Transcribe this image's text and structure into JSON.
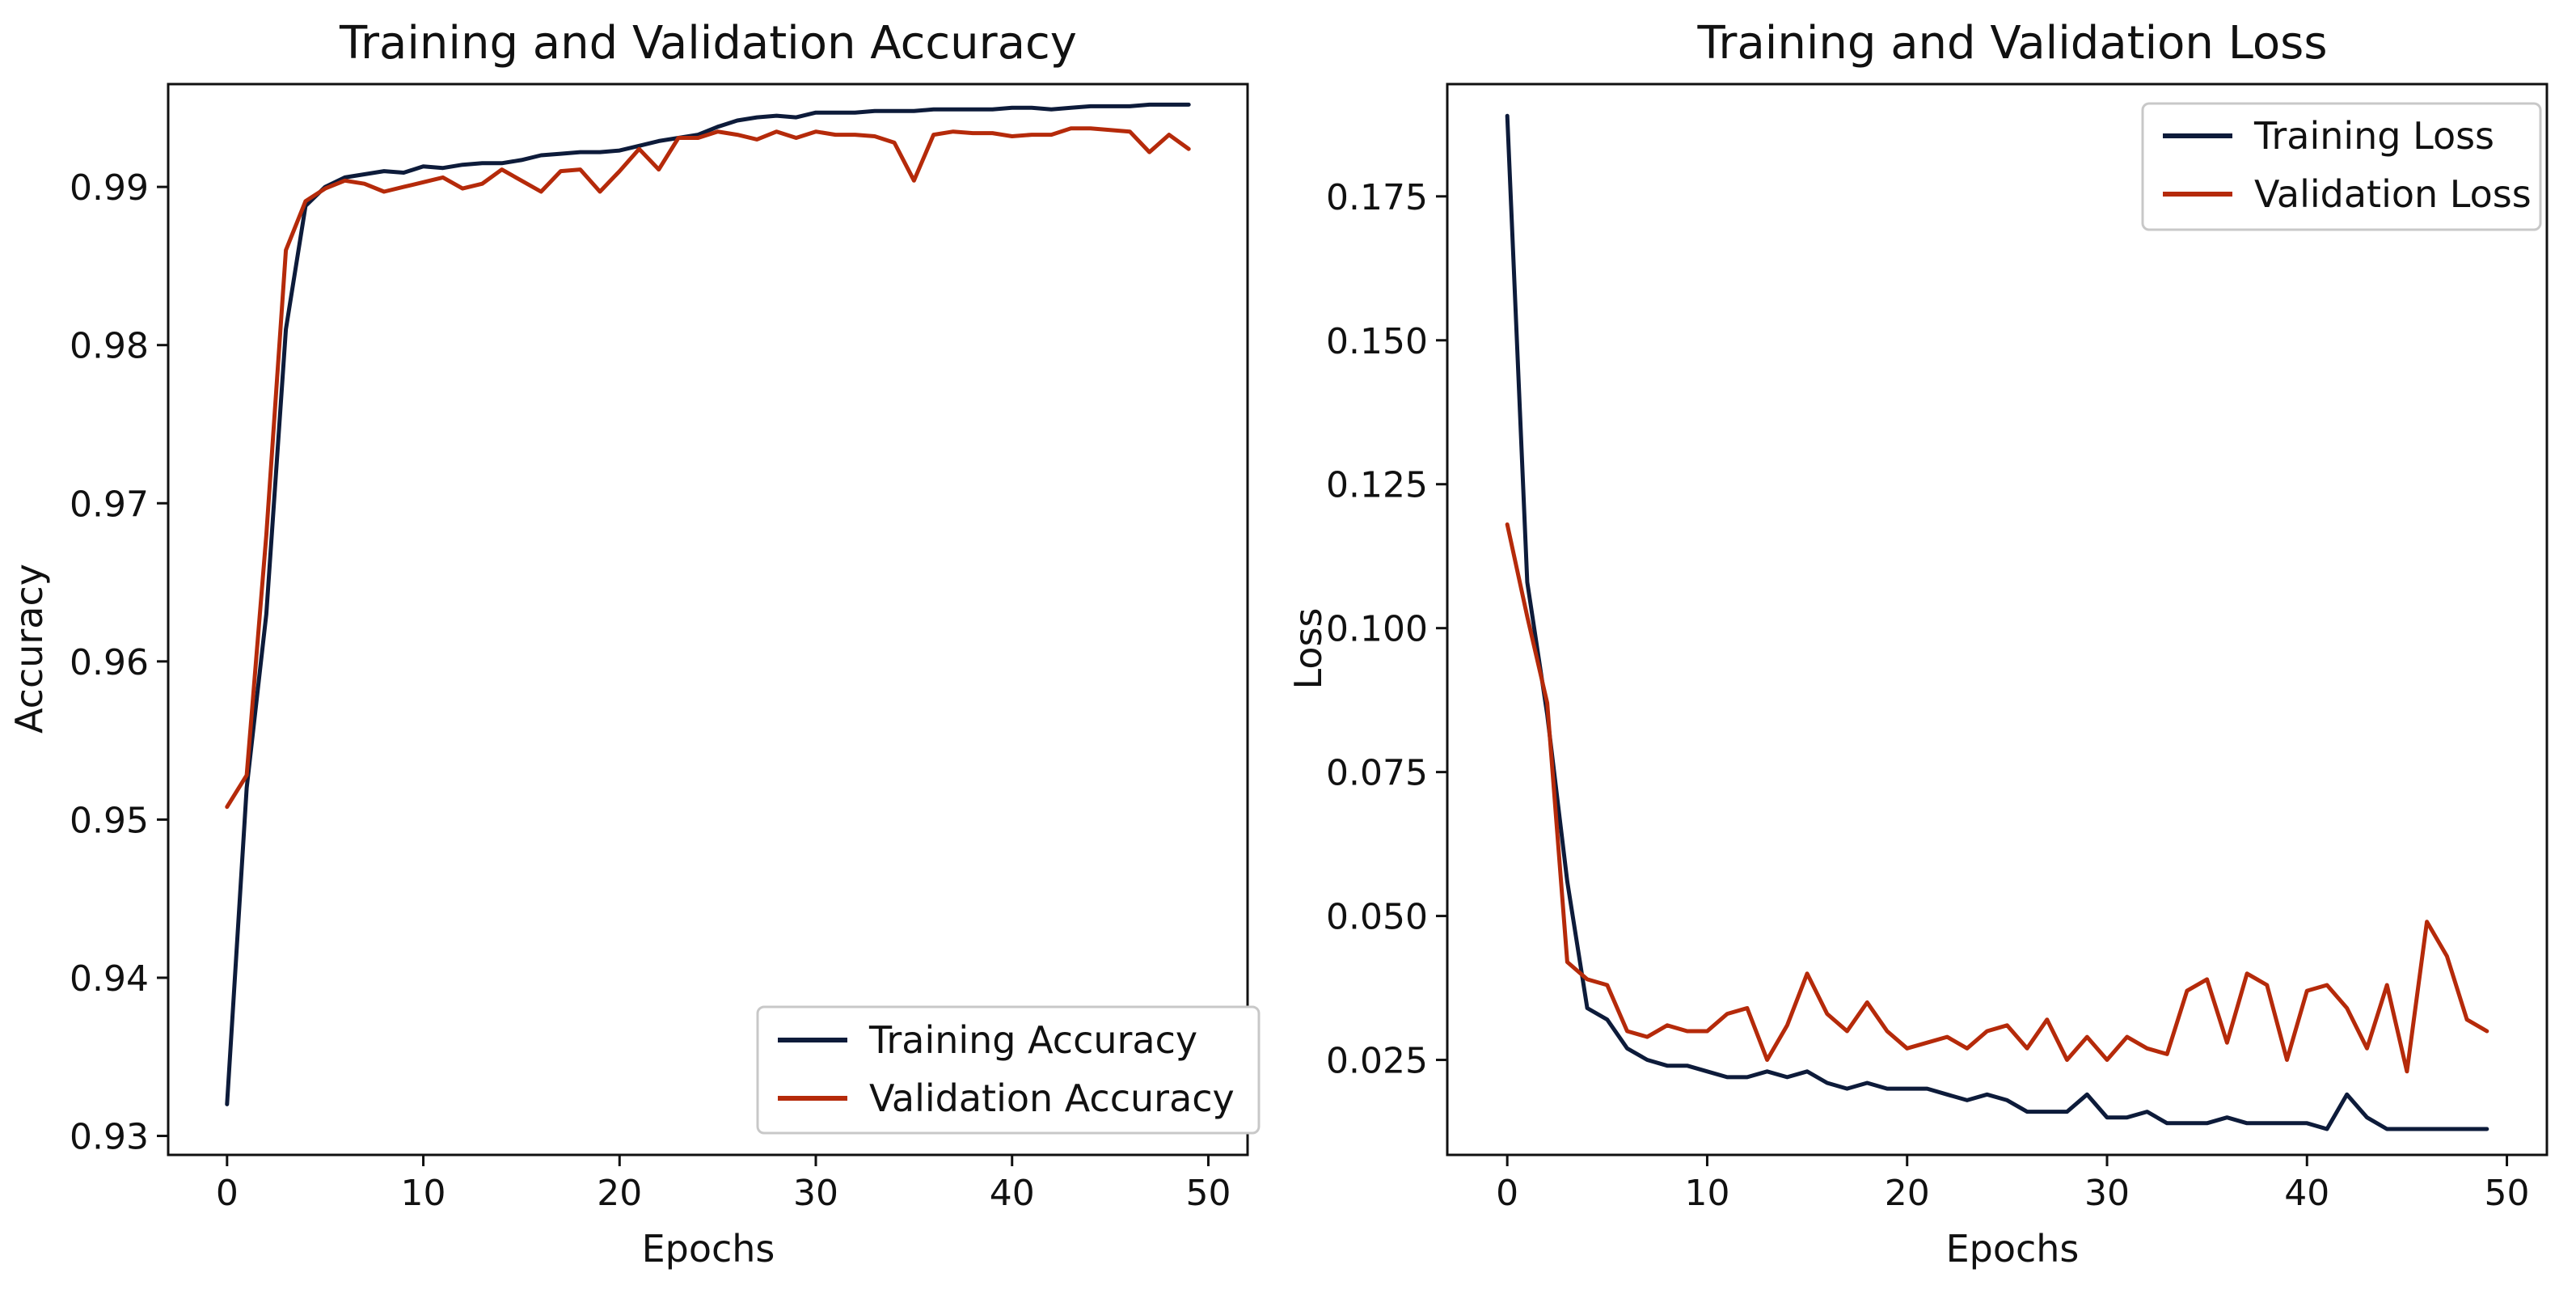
{
  "colors": {
    "training": "#0d1b3a",
    "validation": "#b52a0a"
  },
  "chart_data": [
    {
      "type": "line",
      "title": "Training and Validation Accuracy",
      "xlabel": "Epochs",
      "ylabel": "Accuracy",
      "xlim": [
        -3,
        52
      ],
      "ylim": [
        0.9288,
        0.9965
      ],
      "xticks": [
        0,
        10,
        20,
        30,
        40,
        50
      ],
      "yticks": [
        0.93,
        0.94,
        0.95,
        0.96,
        0.97,
        0.98,
        0.99
      ],
      "ytick_labels": [
        "0.93",
        "0.94",
        "0.95",
        "0.96",
        "0.97",
        "0.98",
        "0.99"
      ],
      "legend_position": "lower-right",
      "x": [
        0,
        1,
        2,
        3,
        4,
        5,
        6,
        7,
        8,
        9,
        10,
        11,
        12,
        13,
        14,
        15,
        16,
        17,
        18,
        19,
        20,
        21,
        22,
        23,
        24,
        25,
        26,
        27,
        28,
        29,
        30,
        31,
        32,
        33,
        34,
        35,
        36,
        37,
        38,
        39,
        40,
        41,
        42,
        43,
        44,
        45,
        46,
        47,
        48,
        49
      ],
      "series": [
        {
          "name": "Training Accuracy",
          "color_key": "training",
          "values": [
            0.932,
            0.952,
            0.963,
            0.981,
            0.9888,
            0.99,
            0.9906,
            0.9908,
            0.991,
            0.9909,
            0.9913,
            0.9912,
            0.9914,
            0.9915,
            0.9915,
            0.9917,
            0.992,
            0.9921,
            0.9922,
            0.9922,
            0.9923,
            0.9926,
            0.9929,
            0.9931,
            0.9933,
            0.9938,
            0.9942,
            0.9944,
            0.9945,
            0.9944,
            0.9947,
            0.9947,
            0.9947,
            0.9948,
            0.9948,
            0.9948,
            0.9949,
            0.9949,
            0.9949,
            0.9949,
            0.995,
            0.995,
            0.9949,
            0.995,
            0.9951,
            0.9951,
            0.9951,
            0.9952,
            0.9952,
            0.9952
          ]
        },
        {
          "name": "Validation Accuracy",
          "color_key": "validation",
          "values": [
            0.9508,
            0.9528,
            0.968,
            0.986,
            0.9891,
            0.9899,
            0.9904,
            0.9902,
            0.9897,
            0.99,
            0.9903,
            0.9906,
            0.9899,
            0.9902,
            0.9911,
            0.9904,
            0.9897,
            0.991,
            0.9911,
            0.9897,
            0.991,
            0.9924,
            0.9911,
            0.9931,
            0.9931,
            0.9935,
            0.9933,
            0.993,
            0.9935,
            0.9931,
            0.9935,
            0.9933,
            0.9933,
            0.9932,
            0.9928,
            0.9904,
            0.9933,
            0.9935,
            0.9934,
            0.9934,
            0.9932,
            0.9933,
            0.9933,
            0.9937,
            0.9937,
            0.9936,
            0.9935,
            0.9922,
            0.9933,
            0.9924
          ]
        }
      ]
    },
    {
      "type": "line",
      "title": "Training and Validation Loss",
      "xlabel": "Epochs",
      "ylabel": "Loss",
      "xlim": [
        -3,
        52
      ],
      "ylim": [
        0.0085,
        0.1945
      ],
      "xticks": [
        0,
        10,
        20,
        30,
        40,
        50
      ],
      "yticks": [
        0.025,
        0.05,
        0.075,
        0.1,
        0.125,
        0.15,
        0.175
      ],
      "ytick_labels": [
        "0.025",
        "0.050",
        "0.075",
        "0.100",
        "0.125",
        "0.150",
        "0.175"
      ],
      "legend_position": "upper-right",
      "x": [
        0,
        1,
        2,
        3,
        4,
        5,
        6,
        7,
        8,
        9,
        10,
        11,
        12,
        13,
        14,
        15,
        16,
        17,
        18,
        19,
        20,
        21,
        22,
        23,
        24,
        25,
        26,
        27,
        28,
        29,
        30,
        31,
        32,
        33,
        34,
        35,
        36,
        37,
        38,
        39,
        40,
        41,
        42,
        43,
        44,
        45,
        46,
        47,
        48,
        49
      ],
      "series": [
        {
          "name": "Training Loss",
          "color_key": "training",
          "values": [
            0.189,
            0.108,
            0.085,
            0.056,
            0.034,
            0.032,
            0.027,
            0.025,
            0.024,
            0.024,
            0.023,
            0.022,
            0.022,
            0.023,
            0.022,
            0.023,
            0.021,
            0.02,
            0.021,
            0.02,
            0.02,
            0.02,
            0.019,
            0.018,
            0.019,
            0.018,
            0.016,
            0.016,
            0.016,
            0.019,
            0.015,
            0.015,
            0.016,
            0.014,
            0.014,
            0.014,
            0.015,
            0.014,
            0.014,
            0.014,
            0.014,
            0.013,
            0.019,
            0.015,
            0.013,
            0.013,
            0.013,
            0.013,
            0.013,
            0.013
          ]
        },
        {
          "name": "Validation Loss",
          "color_key": "validation",
          "values": [
            0.118,
            0.102,
            0.087,
            0.042,
            0.039,
            0.038,
            0.03,
            0.029,
            0.031,
            0.03,
            0.03,
            0.033,
            0.034,
            0.025,
            0.031,
            0.04,
            0.033,
            0.03,
            0.035,
            0.03,
            0.027,
            0.028,
            0.029,
            0.027,
            0.03,
            0.031,
            0.027,
            0.032,
            0.025,
            0.029,
            0.025,
            0.029,
            0.027,
            0.026,
            0.037,
            0.039,
            0.028,
            0.04,
            0.038,
            0.025,
            0.037,
            0.038,
            0.034,
            0.027,
            0.038,
            0.023,
            0.049,
            0.043,
            0.032,
            0.03
          ]
        }
      ]
    }
  ]
}
